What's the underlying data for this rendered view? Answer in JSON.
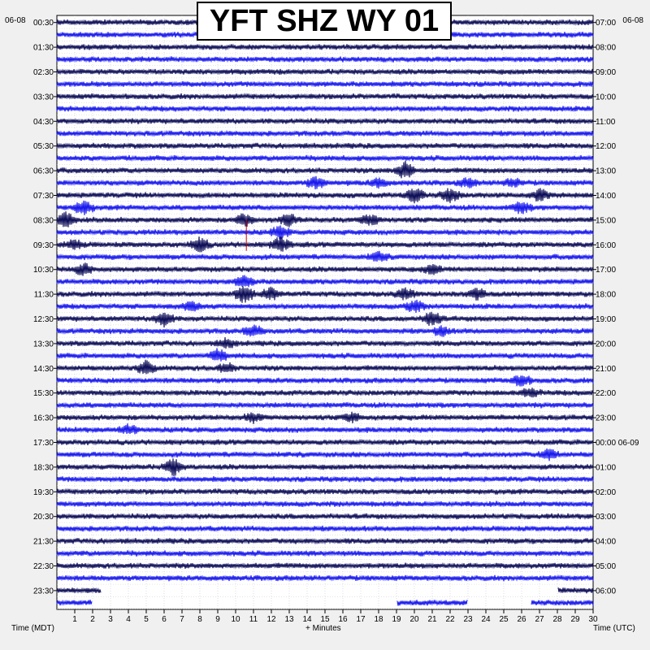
{
  "chart_data": {
    "type": "line",
    "title": "YFT SHZ WY 01",
    "date_left": "06-08",
    "date_right": "06-08",
    "xlabel_left": "Time (MDT)",
    "xlabel_center": "+ Minutes",
    "xlabel_right": "Time (UTC)",
    "x_ticks": [
      "1",
      "2",
      "3",
      "4",
      "5",
      "6",
      "7",
      "8",
      "9",
      "10",
      "11",
      "12",
      "13",
      "14",
      "15",
      "16",
      "17",
      "18",
      "19",
      "20",
      "21",
      "22",
      "23",
      "24",
      "25",
      "26",
      "27",
      "28",
      "29",
      "30"
    ],
    "xlim": [
      0,
      30
    ],
    "left_time_labels": [
      "00:30",
      "01:30",
      "02:30",
      "03:30",
      "04:30",
      "05:30",
      "06:30",
      "07:30",
      "08:30",
      "09:30",
      "10:30",
      "11:30",
      "12:30",
      "13:30",
      "14:30",
      "15:30",
      "16:30",
      "17:30",
      "18:30",
      "19:30",
      "20:30",
      "21:30",
      "22:30",
      "23:30"
    ],
    "right_time_labels": [
      "07:00",
      "08:00",
      "09:00",
      "10:00",
      "11:00",
      "12:00",
      "13:00",
      "14:00",
      "15:00",
      "16:00",
      "17:00",
      "18:00",
      "19:00",
      "20:00",
      "21:00",
      "22:00",
      "23:00",
      "00:00 06-09",
      "01:00",
      "02:00",
      "03:00",
      "04:00",
      "05:00",
      "06:00"
    ],
    "trace_count": 48,
    "colors": {
      "dark": "#10105a",
      "blue": "#1a1aee",
      "red": "#cc0000"
    },
    "events": [
      {
        "trace": 12,
        "minute": 19.5,
        "amp": 3.0
      },
      {
        "trace": 13,
        "minute": 14.5,
        "amp": 2.0
      },
      {
        "trace": 13,
        "minute": 18.0,
        "amp": 1.5
      },
      {
        "trace": 13,
        "minute": 23.0,
        "amp": 1.5
      },
      {
        "trace": 13,
        "minute": 25.5,
        "amp": 1.5
      },
      {
        "trace": 14,
        "minute": 20.0,
        "amp": 2.5
      },
      {
        "trace": 14,
        "minute": 22.0,
        "amp": 2.5
      },
      {
        "trace": 14,
        "minute": 27.0,
        "amp": 2.0
      },
      {
        "trace": 15,
        "minute": 1.5,
        "amp": 2.5
      },
      {
        "trace": 15,
        "minute": 26.0,
        "amp": 2.0
      },
      {
        "trace": 16,
        "minute": 0.5,
        "amp": 2.5
      },
      {
        "trace": 16,
        "minute": 10.5,
        "amp": 2.0
      },
      {
        "trace": 16,
        "minute": 13.0,
        "amp": 2.0
      },
      {
        "trace": 16,
        "minute": 17.5,
        "amp": 2.0
      },
      {
        "trace": 17,
        "minute": 12.5,
        "amp": 2.0
      },
      {
        "trace": 18,
        "minute": 1.0,
        "amp": 1.5
      },
      {
        "trace": 18,
        "minute": 8.0,
        "amp": 2.5
      },
      {
        "trace": 18,
        "minute": 12.5,
        "amp": 2.5
      },
      {
        "trace": 19,
        "minute": 18.0,
        "amp": 1.5
      },
      {
        "trace": 20,
        "minute": 1.5,
        "amp": 2.0
      },
      {
        "trace": 20,
        "minute": 21.0,
        "amp": 1.5
      },
      {
        "trace": 21,
        "minute": 10.5,
        "amp": 2.0
      },
      {
        "trace": 22,
        "minute": 10.5,
        "amp": 3.0
      },
      {
        "trace": 22,
        "minute": 12.0,
        "amp": 2.0
      },
      {
        "trace": 22,
        "minute": 19.5,
        "amp": 2.0
      },
      {
        "trace": 22,
        "minute": 23.5,
        "amp": 2.0
      },
      {
        "trace": 23,
        "minute": 20.0,
        "amp": 2.0
      },
      {
        "trace": 23,
        "minute": 7.5,
        "amp": 1.5
      },
      {
        "trace": 24,
        "minute": 6.0,
        "amp": 2.5
      },
      {
        "trace": 24,
        "minute": 21.0,
        "amp": 2.5
      },
      {
        "trace": 25,
        "minute": 11.0,
        "amp": 2.0
      },
      {
        "trace": 25,
        "minute": 21.5,
        "amp": 1.5
      },
      {
        "trace": 26,
        "minute": 9.5,
        "amp": 1.5
      },
      {
        "trace": 27,
        "minute": 9.0,
        "amp": 2.0
      },
      {
        "trace": 28,
        "minute": 5.0,
        "amp": 2.5
      },
      {
        "trace": 28,
        "minute": 9.5,
        "amp": 1.5
      },
      {
        "trace": 29,
        "minute": 26.0,
        "amp": 2.0
      },
      {
        "trace": 30,
        "minute": 26.5,
        "amp": 1.5
      },
      {
        "trace": 32,
        "minute": 11.0,
        "amp": 1.5
      },
      {
        "trace": 32,
        "minute": 16.5,
        "amp": 1.5
      },
      {
        "trace": 33,
        "minute": 4.0,
        "amp": 1.5
      },
      {
        "trace": 35,
        "minute": 27.5,
        "amp": 2.0
      },
      {
        "trace": 36,
        "minute": 6.5,
        "amp": 3.0
      }
    ],
    "gaps": [
      {
        "trace": 46,
        "from": 2.5,
        "to": 28.0
      },
      {
        "trace": 47,
        "from": 2.0,
        "to": 19.0
      },
      {
        "trace": 47,
        "from": 23.0,
        "to": 26.5
      }
    ],
    "grid": true
  }
}
